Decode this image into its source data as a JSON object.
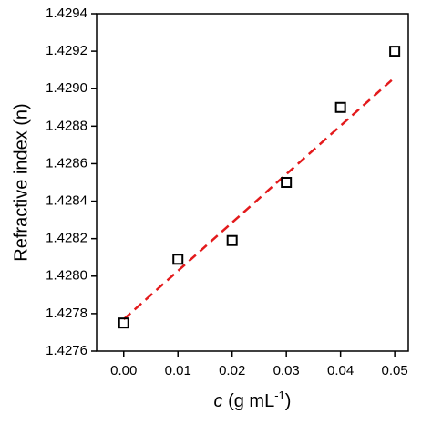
{
  "chart_data": {
    "type": "scatter",
    "xlabel_parts": [
      "c",
      " (g mL",
      "-1",
      ")"
    ],
    "ylabel": "Refractive index (n)",
    "x": [
      0,
      0.01,
      0.02,
      0.03,
      0.04,
      0.05
    ],
    "values": [
      1.42775,
      1.42809,
      1.42819,
      1.4285,
      1.4289,
      1.4292
    ],
    "color": "#000000",
    "fit": {
      "x": [
        0,
        0.05
      ],
      "values": [
        1.42777,
        1.42906
      ],
      "color": "#e31a1c"
    },
    "xlim": [
      -0.005,
      0.0525
    ],
    "ylim": [
      1.4276,
      1.4294
    ],
    "xticks": [
      {
        "value": 0,
        "label": "0.00"
      },
      0.01,
      0.02,
      0.03,
      0.04,
      0.05
    ],
    "yticks": [
      1.4276,
      1.4278,
      {
        "value": 1.428,
        "label": "1.4280"
      },
      1.4282,
      1.4284,
      1.4286,
      1.4288,
      {
        "value": 1.429,
        "label": "1.4290"
      },
      1.4292,
      1.4294
    ]
  }
}
